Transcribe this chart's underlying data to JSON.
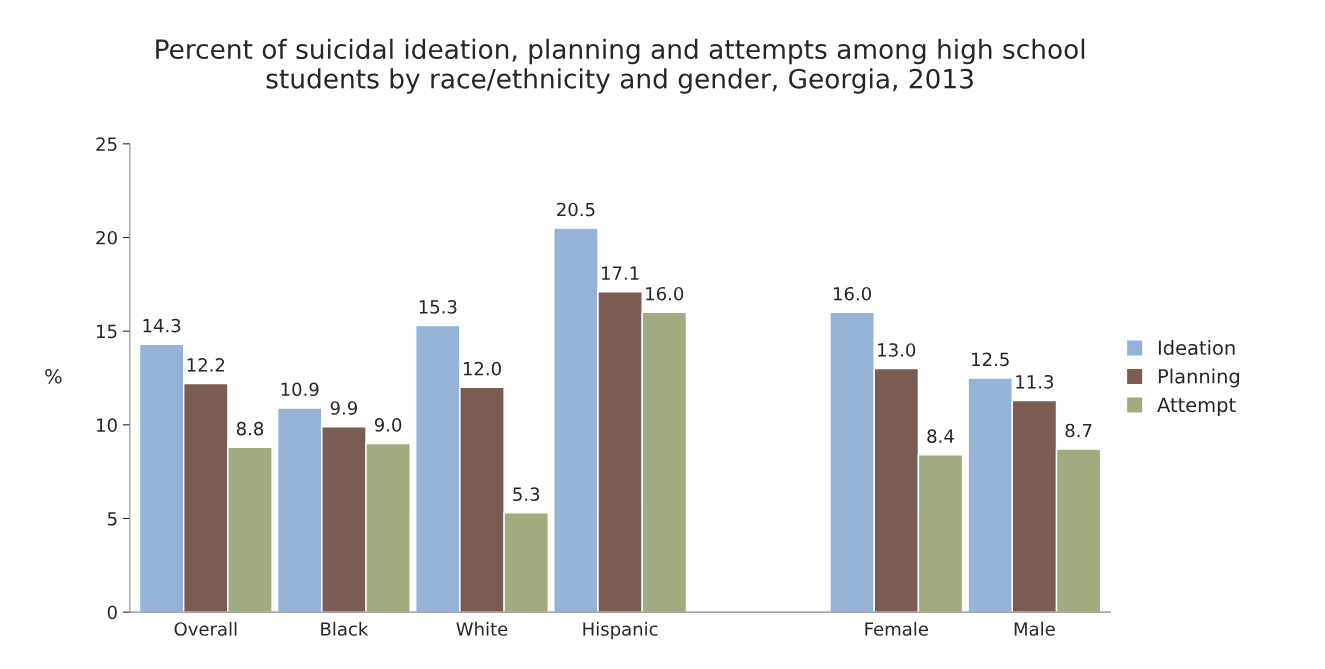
{
  "chart_data": {
    "type": "bar",
    "title": "Percent of suicidal ideation, planning and attempts among high school\nstudents by race/ethnicity and gender, Georgia, 2013",
    "ylabel": "%",
    "categories": [
      "Overall",
      "Black",
      "White",
      "Hispanic",
      null,
      "Female",
      "Male"
    ],
    "series": [
      {
        "name": "Ideation",
        "color": "#95b3d7",
        "values": [
          14.3,
          10.9,
          15.3,
          20.5,
          null,
          16.0,
          12.5
        ],
        "value_labels": [
          "14.3",
          "10.9",
          "15.3",
          "20.5",
          null,
          "16.0",
          "12.5"
        ]
      },
      {
        "name": "Planning",
        "color": "#7b5c52",
        "values": [
          12.2,
          9.9,
          12.0,
          17.1,
          null,
          13.0,
          11.3
        ],
        "value_labels": [
          "12.2",
          "9.9",
          "12.0",
          "17.1",
          null,
          "13.0",
          "11.3"
        ]
      },
      {
        "name": "Attempt",
        "color": "#a0ac80",
        "values": [
          8.8,
          9.0,
          5.3,
          16.0,
          null,
          8.4,
          8.7
        ],
        "value_labels": [
          "8.8",
          "9.0",
          "5.3",
          "16.0",
          null,
          "8.4",
          "8.7"
        ]
      }
    ],
    "ylim": [
      0,
      25
    ],
    "yticks": [
      0,
      5,
      10,
      15,
      20,
      25
    ],
    "grid": false,
    "legend": "right"
  }
}
